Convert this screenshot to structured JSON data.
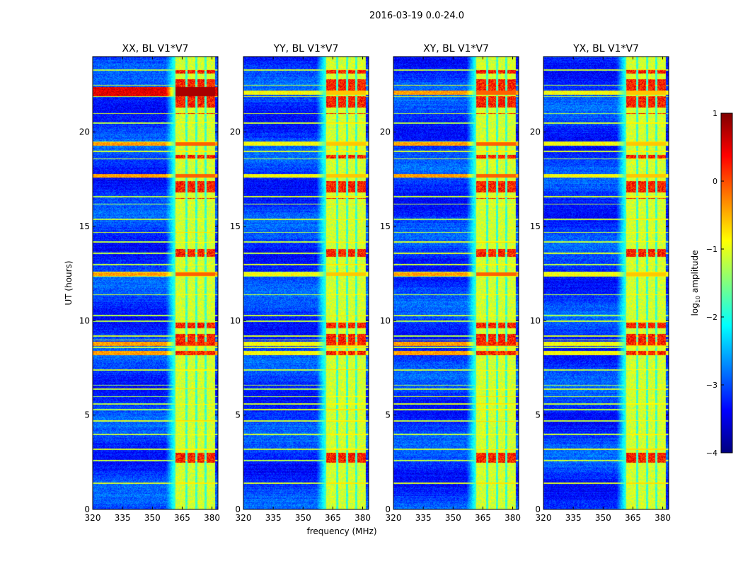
{
  "suptitle": "2016-03-19 0.0-24.0",
  "xlabel": "frequency (MHz)",
  "ylabel": "UT (hours)",
  "colorbar": {
    "label_prefix": "log",
    "label_sub": "10",
    "label_suffix": " amplitude",
    "ticks": [
      "1",
      "0",
      "−1",
      "−2",
      "−3",
      "−4"
    ],
    "range": [
      -4,
      1
    ],
    "stops": [
      "#00007f",
      "#0000ff",
      "#0080ff",
      "#00ffff",
      "#80ff80",
      "#ffff00",
      "#ff8000",
      "#ff0000",
      "#7f0000"
    ]
  },
  "chart_data": [
    {
      "type": "heatmap",
      "title": "XX, BL V1*V7",
      "x": {
        "label": "frequency (MHz)",
        "range": [
          320,
          383
        ],
        "ticks": [
          "320",
          "335",
          "350",
          "365",
          "380"
        ]
      },
      "y": {
        "label": "UT (hours)",
        "range": [
          0,
          24
        ],
        "ticks": [
          "0",
          "5",
          "10",
          "15",
          "20"
        ]
      },
      "z": {
        "label": "log10 amplitude",
        "range": [
          -4,
          1
        ]
      },
      "band_mhz": [
        361.5,
        381.5
      ],
      "variant": 0
    },
    {
      "type": "heatmap",
      "title": "YY, BL V1*V7",
      "x": {
        "label": "frequency (MHz)",
        "range": [
          320,
          383
        ],
        "ticks": [
          "320",
          "335",
          "350",
          "365",
          "380"
        ]
      },
      "y": {
        "label": "UT (hours)",
        "range": [
          0,
          24
        ],
        "ticks": [
          "0",
          "5",
          "10",
          "15",
          "20"
        ]
      },
      "z": {
        "label": "log10 amplitude",
        "range": [
          -4,
          1
        ]
      },
      "band_mhz": [
        361.5,
        381.5
      ],
      "variant": 1
    },
    {
      "type": "heatmap",
      "title": "XY, BL V1*V7",
      "x": {
        "label": "frequency (MHz)",
        "range": [
          320,
          383
        ],
        "ticks": [
          "320",
          "335",
          "350",
          "365",
          "380"
        ]
      },
      "y": {
        "label": "UT (hours)",
        "range": [
          0,
          24
        ],
        "ticks": [
          "0",
          "5",
          "10",
          "15",
          "20"
        ]
      },
      "z": {
        "label": "log10 amplitude",
        "range": [
          -4,
          1
        ]
      },
      "band_mhz": [
        361.5,
        381.5
      ],
      "variant": 2
    },
    {
      "type": "heatmap",
      "title": "YX, BL V1*V7",
      "x": {
        "label": "frequency (MHz)",
        "range": [
          320,
          383
        ],
        "ticks": [
          "320",
          "335",
          "350",
          "365",
          "380"
        ]
      },
      "y": {
        "label": "UT (hours)",
        "range": [
          0,
          24
        ],
        "ticks": [
          "0",
          "5",
          "10",
          "15",
          "20"
        ]
      },
      "z": {
        "label": "log10 amplitude",
        "range": [
          -4,
          1
        ]
      },
      "band_mhz": [
        361.5,
        381.5
      ],
      "variant": 3
    }
  ]
}
